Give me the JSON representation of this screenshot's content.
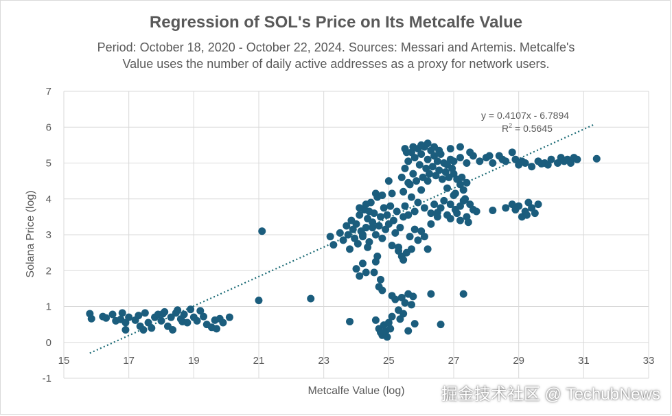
{
  "chart_data": {
    "type": "scatter",
    "title": "Regression of SOL's Price on Its Metcalfe Value",
    "subtitle_lines": [
      "Period: October 18, 2020 - October 22, 2024. Sources: Messari and Artemis. Metcalfe's",
      "Value uses the number of daily active addresses as a proxy for network users."
    ],
    "xlabel": "Metcalfe Value (log)",
    "ylabel": "Solana Price (log)",
    "xlim": [
      15,
      33
    ],
    "ylim": [
      -1,
      7
    ],
    "x_ticks": [
      15,
      17,
      19,
      21,
      23,
      25,
      27,
      29,
      31,
      33
    ],
    "y_ticks": [
      -1,
      0,
      1,
      2,
      3,
      4,
      5,
      6,
      7
    ],
    "grid": true,
    "colors": {
      "points": "#1b5d7d",
      "trendline": "#1a6a75",
      "grid": "#d9d9d9",
      "text": "#595959"
    },
    "trendline": {
      "slope": 0.4107,
      "intercept": -6.7894,
      "x_range": [
        15.8,
        31.3
      ],
      "equation": "y = 0.4107x - 6.7894",
      "r2_label": "R",
      "r2_sup": "2",
      "r2_value": " = 0.5645"
    },
    "series": [
      {
        "points": [
          [
            15.8,
            0.8
          ],
          [
            15.85,
            0.66
          ],
          [
            16.2,
            0.72
          ],
          [
            16.3,
            0.68
          ],
          [
            16.5,
            0.78
          ],
          [
            16.6,
            0.6
          ],
          [
            16.75,
            0.64
          ],
          [
            16.8,
            0.82
          ],
          [
            16.9,
            0.55
          ],
          [
            17.0,
            0.7
          ],
          [
            17.2,
            0.62
          ],
          [
            17.3,
            0.75
          ],
          [
            17.35,
            0.45
          ],
          [
            17.5,
            0.82
          ],
          [
            17.6,
            0.55
          ],
          [
            17.7,
            0.4
          ],
          [
            17.8,
            0.7
          ],
          [
            17.9,
            0.78
          ],
          [
            18.0,
            0.6
          ],
          [
            18.1,
            0.85
          ],
          [
            18.2,
            0.45
          ],
          [
            18.3,
            0.7
          ],
          [
            18.35,
            0.35
          ],
          [
            18.45,
            0.82
          ],
          [
            18.5,
            0.9
          ],
          [
            18.6,
            0.65
          ],
          [
            18.7,
            0.78
          ],
          [
            18.8,
            0.55
          ],
          [
            18.9,
            0.92
          ],
          [
            19.0,
            0.7
          ],
          [
            19.1,
            0.6
          ],
          [
            19.2,
            0.88
          ],
          [
            19.3,
            0.72
          ],
          [
            19.4,
            0.5
          ],
          [
            19.55,
            0.42
          ],
          [
            19.65,
            0.62
          ],
          [
            19.7,
            0.38
          ],
          [
            19.8,
            0.66
          ],
          [
            19.9,
            0.55
          ],
          [
            20.1,
            0.7
          ],
          [
            16.9,
            0.35
          ],
          [
            17.45,
            0.35
          ],
          [
            18.05,
            0.8
          ],
          [
            18.65,
            0.58
          ],
          [
            21.0,
            1.17
          ],
          [
            21.1,
            3.1
          ],
          [
            22.6,
            1.22
          ],
          [
            23.8,
            0.58
          ],
          [
            23.2,
            2.95
          ],
          [
            23.3,
            2.72
          ],
          [
            23.5,
            3.05
          ],
          [
            23.6,
            2.85
          ],
          [
            23.7,
            3.25
          ],
          [
            23.75,
            3.0
          ],
          [
            23.8,
            2.6
          ],
          [
            23.85,
            3.4
          ],
          [
            23.9,
            3.15
          ],
          [
            23.95,
            2.9
          ],
          [
            24.0,
            3.3
          ],
          [
            24.05,
            2.75
          ],
          [
            24.1,
            3.55
          ],
          [
            24.15,
            3.1
          ],
          [
            24.2,
            2.95
          ],
          [
            24.25,
            3.7
          ],
          [
            24.3,
            3.2
          ],
          [
            24.35,
            3.45
          ],
          [
            24.4,
            2.8
          ],
          [
            24.45,
            3.9
          ],
          [
            24.5,
            3.35
          ],
          [
            24.55,
            3.6
          ],
          [
            24.6,
            3.0
          ],
          [
            24.65,
            4.05
          ],
          [
            24.7,
            3.25
          ],
          [
            24.75,
            3.5
          ],
          [
            24.8,
            2.9
          ],
          [
            24.85,
            3.75
          ],
          [
            24.9,
            3.15
          ],
          [
            24.95,
            3.55
          ],
          [
            25.0,
            3.3
          ],
          [
            25.05,
            3.8
          ],
          [
            25.1,
            2.7
          ],
          [
            25.15,
            3.4
          ],
          [
            25.2,
            3.05
          ],
          [
            25.25,
            3.65
          ],
          [
            25.3,
            2.55
          ],
          [
            25.35,
            3.2
          ],
          [
            25.4,
            2.4
          ],
          [
            25.45,
            3.5
          ],
          [
            24.0,
            2.05
          ],
          [
            24.1,
            1.85
          ],
          [
            24.2,
            2.2
          ],
          [
            24.3,
            1.95
          ],
          [
            24.6,
            2.25
          ],
          [
            24.7,
            1.55
          ],
          [
            24.75,
            1.75
          ],
          [
            24.8,
            1.45
          ],
          [
            24.65,
            2.4
          ],
          [
            24.55,
            1.95
          ],
          [
            24.1,
            3.75
          ],
          [
            24.4,
            3.65
          ],
          [
            24.6,
            4.15
          ],
          [
            24.8,
            4.1
          ],
          [
            25.0,
            4.5
          ],
          [
            25.1,
            4.15
          ],
          [
            24.3,
            3.85
          ],
          [
            24.5,
            3.2
          ],
          [
            24.2,
            3.0
          ],
          [
            24.35,
            2.65
          ],
          [
            24.6,
            0.62
          ],
          [
            24.7,
            0.38
          ],
          [
            24.8,
            0.2
          ],
          [
            24.85,
            0.48
          ],
          [
            24.9,
            0.3
          ],
          [
            25.0,
            0.55
          ],
          [
            25.05,
            0.38
          ],
          [
            25.1,
            0.72
          ],
          [
            24.95,
            0.15
          ],
          [
            24.75,
            0.28
          ],
          [
            25.1,
            1.3
          ],
          [
            25.2,
            1.2
          ],
          [
            25.3,
            0.9
          ],
          [
            25.35,
            0.65
          ],
          [
            25.4,
            1.25
          ],
          [
            25.45,
            0.8
          ],
          [
            25.5,
            1.1
          ],
          [
            25.6,
            1.35
          ],
          [
            25.7,
            1.05
          ],
          [
            25.75,
            1.28
          ],
          [
            25.6,
            0.32
          ],
          [
            25.8,
            0.52
          ],
          [
            26.3,
            1.35
          ],
          [
            26.6,
            0.5
          ],
          [
            27.3,
            1.35
          ],
          [
            25.3,
            2.65
          ],
          [
            25.45,
            2.3
          ],
          [
            25.55,
            2.5
          ],
          [
            25.65,
            2.95
          ],
          [
            25.7,
            2.6
          ],
          [
            25.8,
            3.15
          ],
          [
            25.9,
            2.85
          ],
          [
            26.0,
            3.1
          ],
          [
            26.1,
            2.95
          ],
          [
            26.2,
            2.6
          ],
          [
            25.5,
            3.8
          ],
          [
            25.6,
            3.55
          ],
          [
            25.7,
            4.05
          ],
          [
            25.8,
            3.65
          ],
          [
            25.9,
            3.9
          ],
          [
            26.0,
            4.25
          ],
          [
            26.1,
            3.75
          ],
          [
            26.2,
            4.5
          ],
          [
            26.3,
            3.6
          ],
          [
            26.4,
            3.85
          ],
          [
            26.5,
            3.5
          ],
          [
            26.6,
            3.75
          ],
          [
            26.7,
            3.95
          ],
          [
            26.8,
            3.55
          ],
          [
            26.9,
            3.85
          ],
          [
            27.0,
            4.1
          ],
          [
            27.1,
            3.6
          ],
          [
            27.2,
            3.8
          ],
          [
            27.3,
            3.95
          ],
          [
            27.4,
            3.5
          ],
          [
            27.5,
            3.85
          ],
          [
            27.6,
            3.7
          ],
          [
            27.2,
            3.4
          ],
          [
            27.45,
            3.35
          ],
          [
            27.7,
            3.65
          ],
          [
            26.3,
            3.3
          ],
          [
            26.5,
            3.62
          ],
          [
            26.9,
            3.45
          ],
          [
            27.05,
            3.7
          ],
          [
            27.35,
            4.0
          ],
          [
            28.2,
            3.68
          ],
          [
            28.6,
            3.75
          ],
          [
            28.8,
            3.85
          ],
          [
            29.0,
            3.8
          ],
          [
            29.1,
            3.5
          ],
          [
            29.2,
            3.65
          ],
          [
            29.3,
            3.9
          ],
          [
            29.4,
            3.75
          ],
          [
            29.5,
            3.6
          ],
          [
            29.6,
            3.85
          ],
          [
            28.9,
            3.7
          ],
          [
            29.25,
            3.55
          ],
          [
            25.4,
            4.6
          ],
          [
            25.5,
            4.85
          ],
          [
            25.6,
            5.05
          ],
          [
            25.65,
            4.4
          ],
          [
            25.7,
            5.3
          ],
          [
            25.75,
            4.7
          ],
          [
            25.8,
            5.15
          ],
          [
            25.85,
            4.5
          ],
          [
            25.9,
            5.4
          ],
          [
            25.95,
            4.95
          ],
          [
            26.0,
            5.25
          ],
          [
            26.05,
            4.6
          ],
          [
            26.1,
            5.45
          ],
          [
            26.15,
            4.85
          ],
          [
            26.2,
            5.1
          ],
          [
            26.25,
            4.7
          ],
          [
            26.3,
            5.35
          ],
          [
            26.35,
            4.9
          ],
          [
            26.4,
            5.2
          ],
          [
            26.45,
            4.65
          ],
          [
            26.5,
            5.05
          ],
          [
            26.55,
            4.8
          ],
          [
            26.6,
            5.25
          ],
          [
            26.65,
            4.55
          ],
          [
            26.7,
            5.0
          ],
          [
            26.75,
            4.75
          ],
          [
            26.8,
            4.95
          ],
          [
            26.85,
            4.6
          ],
          [
            26.9,
            5.1
          ],
          [
            26.95,
            4.85
          ],
          [
            27.0,
            4.7
          ],
          [
            27.1,
            4.55
          ],
          [
            27.2,
            4.4
          ],
          [
            27.3,
            4.25
          ],
          [
            27.4,
            4.45
          ],
          [
            26.8,
            4.3
          ],
          [
            27.05,
            4.15
          ],
          [
            27.25,
            4.6
          ],
          [
            25.45,
            4.2
          ],
          [
            25.6,
            4.45
          ],
          [
            25.5,
            5.4
          ],
          [
            25.55,
            5.3
          ],
          [
            25.75,
            5.45
          ],
          [
            26.0,
            5.5
          ],
          [
            26.2,
            5.55
          ],
          [
            26.4,
            5.45
          ],
          [
            26.55,
            5.35
          ],
          [
            26.9,
            5.4
          ],
          [
            27.2,
            5.45
          ],
          [
            27.5,
            5.3
          ],
          [
            27.0,
            5.05
          ],
          [
            27.2,
            5.15
          ],
          [
            27.4,
            5.0
          ],
          [
            27.6,
            5.2
          ],
          [
            27.8,
            5.05
          ],
          [
            28.0,
            5.15
          ],
          [
            28.2,
            5.0
          ],
          [
            28.4,
            5.2
          ],
          [
            28.6,
            5.05
          ],
          [
            28.8,
            5.3
          ],
          [
            28.9,
            5.1
          ],
          [
            29.0,
            4.95
          ],
          [
            29.2,
            5.0
          ],
          [
            29.4,
            4.9
          ],
          [
            29.6,
            5.05
          ],
          [
            29.8,
            5.0
          ],
          [
            29.9,
            4.95
          ],
          [
            30.0,
            5.1
          ],
          [
            30.2,
            5.0
          ],
          [
            30.3,
            5.15
          ],
          [
            30.4,
            5.05
          ],
          [
            30.5,
            5.1
          ],
          [
            30.6,
            5.0
          ],
          [
            30.7,
            5.15
          ],
          [
            30.8,
            5.1
          ],
          [
            31.4,
            5.12
          ],
          [
            28.1,
            5.2
          ],
          [
            28.5,
            5.1
          ],
          [
            29.1,
            5.05
          ],
          [
            29.7,
            4.98
          ]
        ]
      }
    ]
  },
  "watermark": "掘金技术社区 @ TechubNews"
}
